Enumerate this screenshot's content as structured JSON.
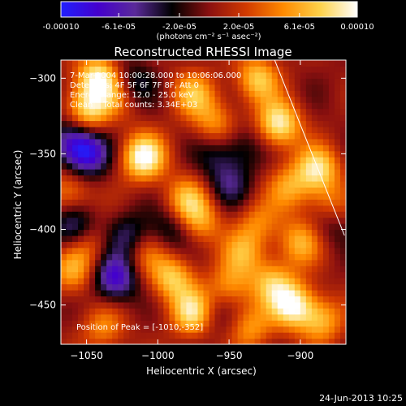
{
  "chart_data": {
    "type": "heatmap",
    "title": "Reconstructed RHESSI Image",
    "xlabel": "Heliocentric X (arcsec)",
    "ylabel": "Heliocentric Y (arcsec)",
    "xlim": [
      -1068,
      -868
    ],
    "ylim": [
      -476,
      -288
    ],
    "xticks": [
      -1050,
      -1000,
      -950,
      -900
    ],
    "yticks": [
      -300,
      -350,
      -400,
      -450
    ],
    "colorbar": {
      "range": [
        -0.0001,
        0.0001
      ],
      "tick_values": [
        -0.0001,
        -6.1e-05,
        -2e-05,
        2e-05,
        6.1e-05,
        0.0001
      ],
      "tick_labels": [
        "-0.00010",
        "-6.1e-05",
        "-2.0e-05",
        "2.0e-05",
        "6.1e-05",
        "0.00010"
      ],
      "unit_label": "(photons cm⁻² s⁻¹ asec⁻²)",
      "colors": [
        "#2020ff",
        "#4400cc",
        "#5a2a9a",
        "#000000",
        "#8a1010",
        "#d23a00",
        "#ff8a00",
        "#ffd24a",
        "#ffffff"
      ]
    },
    "annotations": [
      "7-Mar-2004 10:00:28.000 to 10:06:06.000",
      "Detectors: 4F 5F 6F 7F 8F, Att 0",
      "Energy Range: 12.0 - 25.0 keV",
      "Clean    Total counts: 3.34E+03"
    ],
    "peak_label": "Position of Peak = [-1010,-352]",
    "limb_line": [
      [
        -918,
        -288
      ],
      [
        -869,
        -404
      ]
    ],
    "hotspots": [
      {
        "x": -1010,
        "y": -352,
        "v": 1.0
      },
      {
        "x": -1042,
        "y": -300,
        "v": 0.9
      },
      {
        "x": -1050,
        "y": -322,
        "v": 0.8
      },
      {
        "x": -1025,
        "y": -310,
        "v": 0.6
      },
      {
        "x": -975,
        "y": -310,
        "v": 0.6
      },
      {
        "x": -960,
        "y": -330,
        "v": 0.5
      },
      {
        "x": -930,
        "y": -300,
        "v": 0.7
      },
      {
        "x": -915,
        "y": -330,
        "v": 0.9
      },
      {
        "x": -888,
        "y": -360,
        "v": 0.8
      },
      {
        "x": -908,
        "y": -372,
        "v": 0.5
      },
      {
        "x": -900,
        "y": -408,
        "v": 0.6
      },
      {
        "x": -880,
        "y": -385,
        "v": 0.5
      },
      {
        "x": -940,
        "y": -415,
        "v": 0.5
      },
      {
        "x": -930,
        "y": -395,
        "v": 0.4
      },
      {
        "x": -980,
        "y": -380,
        "v": 0.6
      },
      {
        "x": -970,
        "y": -395,
        "v": 0.5
      },
      {
        "x": -1010,
        "y": -415,
        "v": 0.4
      },
      {
        "x": -1050,
        "y": -408,
        "v": 0.5
      },
      {
        "x": -1060,
        "y": -428,
        "v": 0.55
      },
      {
        "x": -990,
        "y": -432,
        "v": 0.7
      },
      {
        "x": -975,
        "y": -455,
        "v": 0.85
      },
      {
        "x": -950,
        "y": -438,
        "v": 0.5
      },
      {
        "x": -920,
        "y": -435,
        "v": 0.6
      },
      {
        "x": -905,
        "y": -450,
        "v": 0.9
      },
      {
        "x": -885,
        "y": -460,
        "v": 0.6
      },
      {
        "x": -935,
        "y": -465,
        "v": 0.5
      },
      {
        "x": -1038,
        "y": -465,
        "v": 0.45
      },
      {
        "x": -1062,
        "y": -375,
        "v": 0.5
      }
    ],
    "coldspots": [
      {
        "x": -1020,
        "y": -305,
        "v": -0.7
      },
      {
        "x": -1050,
        "y": -350,
        "v": -0.8
      },
      {
        "x": -1060,
        "y": -340,
        "v": -0.6
      },
      {
        "x": -1058,
        "y": -400,
        "v": -0.7
      },
      {
        "x": -1020,
        "y": -405,
        "v": -0.5
      },
      {
        "x": -1030,
        "y": -432,
        "v": -0.8
      },
      {
        "x": -990,
        "y": -400,
        "v": -0.4
      },
      {
        "x": -950,
        "y": -370,
        "v": -0.4
      },
      {
        "x": -960,
        "y": -350,
        "v": -0.3
      },
      {
        "x": -940,
        "y": -345,
        "v": -0.3
      },
      {
        "x": -880,
        "y": -395,
        "v": -0.4
      },
      {
        "x": -960,
        "y": -455,
        "v": -0.3
      }
    ]
  },
  "timestamp": "24-Jun-2013 10:25"
}
